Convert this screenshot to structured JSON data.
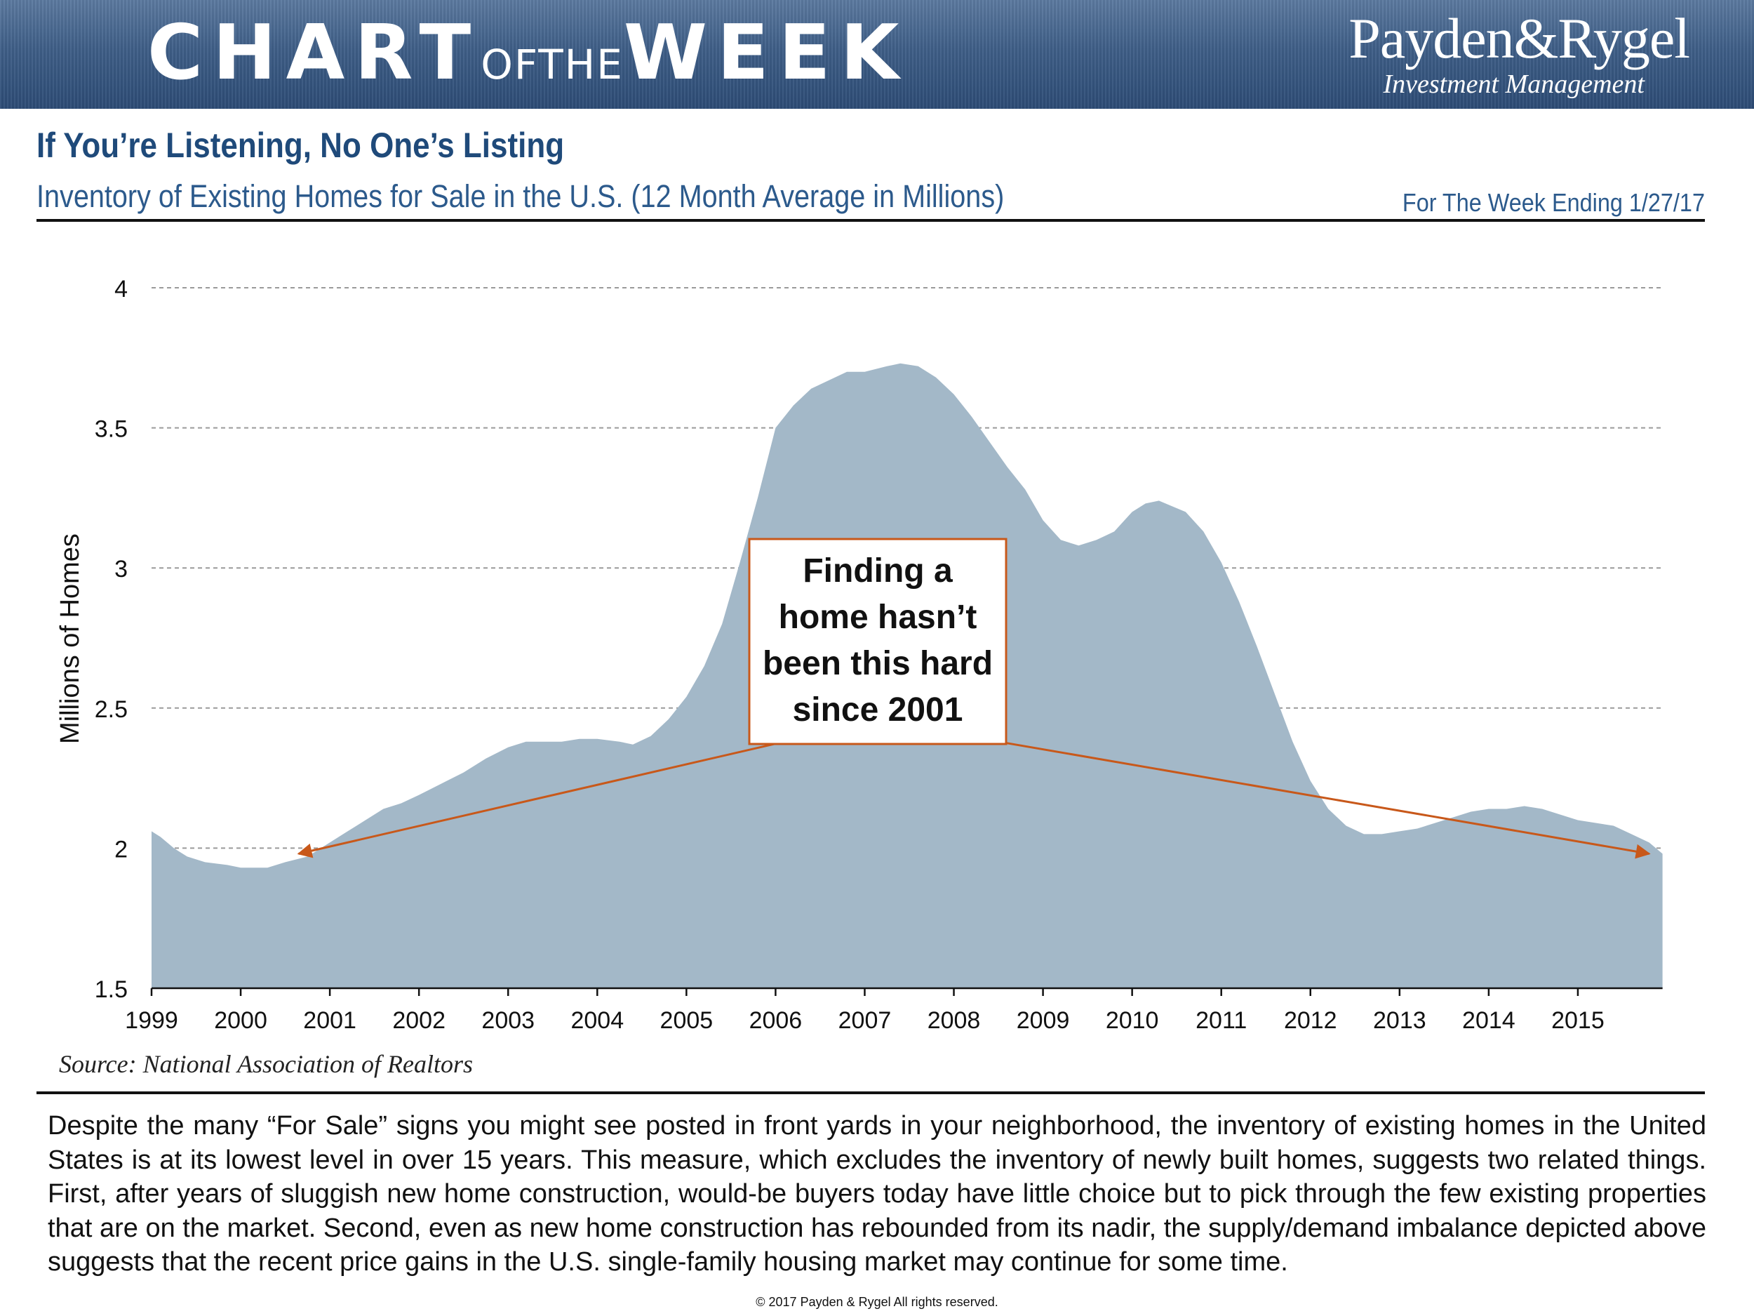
{
  "header": {
    "title_big1": "CHART",
    "title_small": "OFTHE",
    "title_big2": "WEEK",
    "logo_name": "Payden&Rygel",
    "logo_sub": "Investment Management"
  },
  "title": "If You’re Listening, No One’s Listing",
  "subtitle": "Inventory of Existing Homes for Sale in the U.S. (12 Month Average in Millions)",
  "week_ending": "For The Week Ending 1/27/17",
  "source": "Source: National Association of Realtors",
  "body_text": "Despite the many “For Sale” signs you might see posted in front yards in your neighborhood, the inventory of existing homes in the United States is at its lowest level in over 15 years. This measure, which excludes the inventory of newly built homes, suggests two related things. First, after years of sluggish new home construction, would-be buyers today have little choice but to pick through the few existing properties that are on the market. Second, even as new home construction has rebounded from its nadir, the supply/demand imbalance depicted above suggests that the recent price gains in the U.S. single-family housing market may continue for some time.",
  "copyright": "© 2017 Payden & Rygel All rights reserved.",
  "colors": {
    "area": "#a3b8c8",
    "arrow": "#c8581a",
    "title": "#1f4a7a",
    "banner": "#3f5f88"
  },
  "chart_data": {
    "type": "area",
    "title": "Inventory of Existing Homes for Sale in the U.S. (12 Month Average in Millions)",
    "xlabel": "",
    "ylabel": "Millions of Homes",
    "ylim": [
      1.5,
      4
    ],
    "xlim": [
      1999,
      2015.95
    ],
    "yticks": [
      1.5,
      2,
      2.5,
      3,
      3.5,
      4
    ],
    "ytick_labels": [
      "1.5",
      "2",
      "2.5",
      "3",
      "3.5",
      "4"
    ],
    "xticks": [
      "1999",
      "2000",
      "2001",
      "2002",
      "2003",
      "2004",
      "2005",
      "2006",
      "2007",
      "2008",
      "2009",
      "2010",
      "2011",
      "2012",
      "2013",
      "2014",
      "2015"
    ],
    "grid": true,
    "series": [
      {
        "name": "Inventory of Existing Homes for Sale",
        "x": [
          1999.0,
          1999.1,
          1999.25,
          1999.4,
          1999.6,
          1999.85,
          2000.0,
          2000.15,
          2000.3,
          2000.5,
          2000.75,
          2001.0,
          2001.2,
          2001.4,
          2001.6,
          2001.8,
          2002.0,
          2002.25,
          2002.5,
          2002.75,
          2003.0,
          2003.2,
          2003.4,
          2003.6,
          2003.8,
          2004.0,
          2004.25,
          2004.4,
          2004.6,
          2004.8,
          2005.0,
          2005.2,
          2005.4,
          2005.6,
          2005.8,
          2006.0,
          2006.2,
          2006.4,
          2006.6,
          2006.8,
          2007.0,
          2007.25,
          2007.4,
          2007.6,
          2007.8,
          2008.0,
          2008.2,
          2008.4,
          2008.6,
          2008.8,
          2009.0,
          2009.2,
          2009.4,
          2009.6,
          2009.8,
          2010.0,
          2010.15,
          2010.3,
          2010.45,
          2010.6,
          2010.8,
          2011.0,
          2011.2,
          2011.4,
          2011.6,
          2011.8,
          2012.0,
          2012.2,
          2012.4,
          2012.6,
          2012.8,
          2013.0,
          2013.2,
          2013.4,
          2013.6,
          2013.8,
          2014.0,
          2014.2,
          2014.4,
          2014.6,
          2014.8,
          2015.0,
          2015.2,
          2015.4,
          2015.6,
          2015.8,
          2015.95
        ],
        "values": [
          2.06,
          2.04,
          2.0,
          1.97,
          1.95,
          1.94,
          1.93,
          1.93,
          1.93,
          1.95,
          1.97,
          2.02,
          2.06,
          2.1,
          2.14,
          2.16,
          2.19,
          2.23,
          2.27,
          2.32,
          2.36,
          2.38,
          2.38,
          2.38,
          2.39,
          2.39,
          2.38,
          2.37,
          2.4,
          2.46,
          2.54,
          2.65,
          2.8,
          3.02,
          3.25,
          3.5,
          3.58,
          3.64,
          3.67,
          3.7,
          3.7,
          3.72,
          3.73,
          3.72,
          3.68,
          3.62,
          3.54,
          3.45,
          3.36,
          3.28,
          3.17,
          3.1,
          3.08,
          3.1,
          3.13,
          3.2,
          3.23,
          3.24,
          3.22,
          3.2,
          3.13,
          3.02,
          2.88,
          2.72,
          2.55,
          2.38,
          2.24,
          2.14,
          2.08,
          2.05,
          2.05,
          2.06,
          2.07,
          2.09,
          2.11,
          2.13,
          2.14,
          2.14,
          2.15,
          2.14,
          2.12,
          2.1,
          2.09,
          2.08,
          2.05,
          2.02,
          1.98
        ]
      }
    ],
    "annotations": [
      {
        "lines": [
          "Finding a",
          "home hasn’t",
          "been this hard",
          "since 2001"
        ],
        "arrow_from": [
          2006.1,
          2.38
        ],
        "arrow_to": [
          2000.65,
          1.98
        ]
      },
      {
        "arrow_from": [
          2008.5,
          2.38
        ],
        "arrow_to": [
          2015.8,
          1.98
        ]
      }
    ]
  }
}
